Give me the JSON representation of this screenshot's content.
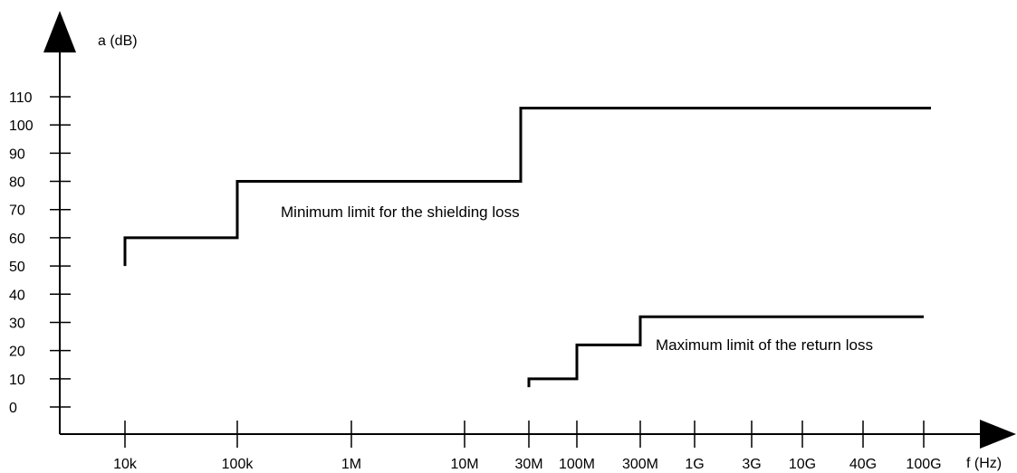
{
  "chart_data": {
    "type": "line",
    "xlabel": "f  (Hz)",
    "ylabel": "a (dB)",
    "x_scale": "log-ish (category ticks)",
    "x_ticks": [
      "10k",
      "100k",
      "1M",
      "10M",
      "30M",
      "100M",
      "300M",
      "1G",
      "3G",
      "10G",
      "40G",
      "100G"
    ],
    "y_ticks": [
      "0",
      "10",
      "20",
      "30",
      "40",
      "50",
      "60",
      "70",
      "80",
      "90",
      "100",
      "110"
    ],
    "ylim": [
      0,
      110
    ],
    "grid": false,
    "series": [
      {
        "points": [
          {
            "x": "10k",
            "y": 50
          },
          {
            "x": "10k",
            "y": 60
          },
          {
            "x": "100k",
            "y": 60
          },
          {
            "x": "100k",
            "y": 80
          },
          {
            "x": "25M",
            "y": 80
          },
          {
            "x": "25M",
            "y": 106
          },
          {
            "x": "100G+",
            "y": 106
          }
        ],
        "annotation": "Minimum limit for the shielding loss"
      },
      {
        "points": [
          {
            "x": "30M",
            "y": 7
          },
          {
            "x": "30M",
            "y": 10
          },
          {
            "x": "100M",
            "y": 10
          },
          {
            "x": "100M",
            "y": 22
          },
          {
            "x": "300M",
            "y": 22
          },
          {
            "x": "300M",
            "y": 32
          },
          {
            "x": "100G",
            "y": 32
          }
        ],
        "annotation": "Maximum limit of the return loss"
      }
    ]
  }
}
